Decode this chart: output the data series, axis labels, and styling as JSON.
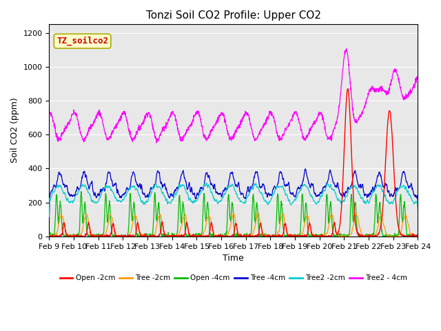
{
  "title": "Tonzi Soil CO2 Profile: Upper CO2",
  "xlabel": "Time",
  "ylabel": "Soil CO2 (ppm)",
  "ylim": [
    0,
    1250
  ],
  "yticks": [
    0,
    200,
    400,
    600,
    800,
    1000,
    1200
  ],
  "xtick_labels": [
    "Feb 9",
    "Feb 10",
    "Feb 11",
    "Feb 12",
    "Feb 13",
    "Feb 14",
    "Feb 15",
    "Feb 16",
    "Feb 17",
    "Feb 18",
    "Feb 19",
    "Feb 20",
    "Feb 21",
    "Feb 22",
    "Feb 23",
    "Feb 24"
  ],
  "legend_labels": [
    "Open -2cm",
    "Tree -2cm",
    "Open -4cm",
    "Tree -4cm",
    "Tree2 -2cm",
    "Tree2 - 4cm"
  ],
  "legend_colors": [
    "#ff0000",
    "#ff9900",
    "#00bb00",
    "#0000cc",
    "#00cccc",
    "#ff00ff"
  ],
  "watermark_text": "TZ_soilco2",
  "watermark_bg": "#ffffcc",
  "watermark_fg": "#cc0000",
  "bg_color": "#e8e8e8",
  "n_days": 15,
  "pts_per_day": 96
}
